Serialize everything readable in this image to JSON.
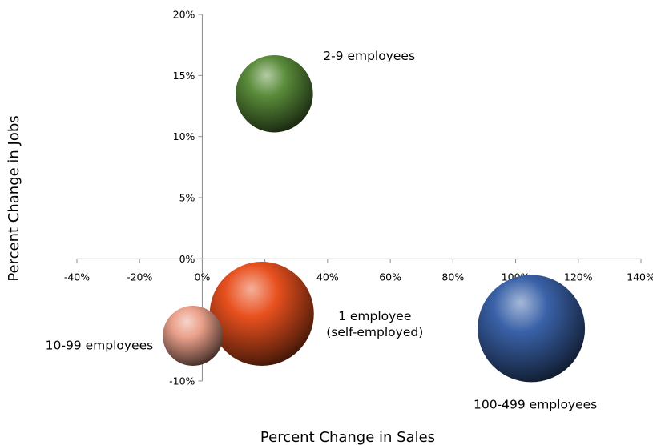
{
  "chart_data": {
    "type": "bubble",
    "title": "",
    "xlabel": "Percent Change in Sales",
    "ylabel": "Percent Change in Jobs",
    "xlim": [
      -40,
      140
    ],
    "ylim": [
      -10,
      20
    ],
    "xticks": [
      -40,
      -20,
      0,
      20,
      40,
      60,
      80,
      100,
      120,
      140
    ],
    "yticks": [
      -10,
      -5,
      0,
      5,
      10,
      15,
      20
    ],
    "tick_suffix": "%",
    "grid": false,
    "legend": "none",
    "series": [
      {
        "label_lines": [
          "2-9 employees"
        ],
        "x": 23,
        "y": 13.5,
        "relative_size": 0.72,
        "color": "#5a8c3a",
        "label_position": "upper-right"
      },
      {
        "label_lines": [
          "1 employee",
          "(self-employed)"
        ],
        "x": 19,
        "y": -4.5,
        "relative_size": 0.97,
        "color": "#e8501e",
        "label_position": "right"
      },
      {
        "label_lines": [
          "10-99 employees"
        ],
        "x": -3,
        "y": -6.3,
        "relative_size": 0.56,
        "color": "#eaa08a",
        "label_position": "left"
      },
      {
        "label_lines": [
          "100-499 employees"
        ],
        "x": 105,
        "y": -5.7,
        "relative_size": 1.0,
        "color": "#3a62a8",
        "label_position": "below"
      }
    ]
  }
}
